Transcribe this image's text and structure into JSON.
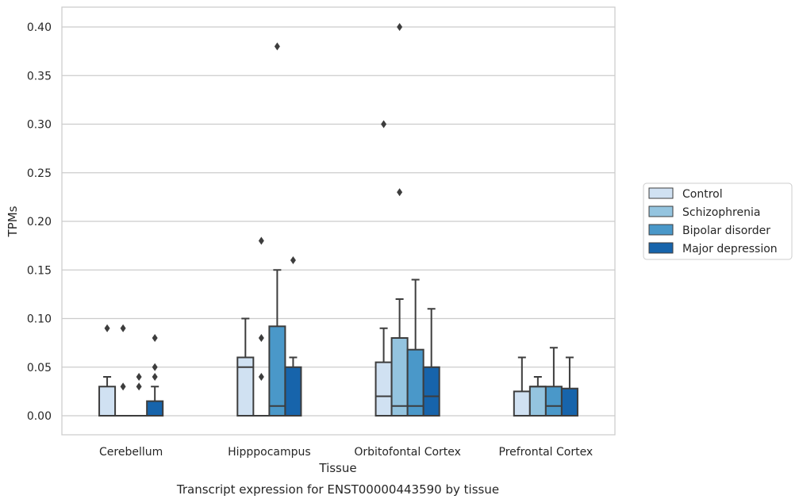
{
  "chart_data": {
    "type": "box",
    "caption": "Transcript expression for ENST00000443590 by tissue",
    "xlabel": "Tissue",
    "ylabel": "TPMs",
    "ylim": [
      -0.02,
      0.42
    ],
    "yticks": [
      "0.00",
      "0.05",
      "0.10",
      "0.15",
      "0.20",
      "0.25",
      "0.30",
      "0.35",
      "0.40"
    ],
    "grid": "horizontal",
    "legend_position": "right",
    "categories": [
      "Cerebellum",
      "Hipppocampus",
      "Orbitofontal Cortex",
      "Prefrontal Cortex"
    ],
    "series": [
      {
        "name": "Control",
        "color": "#d0e1f2",
        "boxes": [
          {
            "whislo": 0.0,
            "q1": 0.0,
            "med": 0.0,
            "q3": 0.03,
            "whishi": 0.04,
            "fliers": [
              0.09
            ]
          },
          {
            "whislo": 0.0,
            "q1": 0.0,
            "med": 0.05,
            "q3": 0.06,
            "whishi": 0.1,
            "fliers": []
          },
          {
            "whislo": 0.0,
            "q1": 0.0,
            "med": 0.02,
            "q3": 0.055,
            "whishi": 0.09,
            "fliers": [
              0.3
            ]
          },
          {
            "whislo": 0.0,
            "q1": 0.0,
            "med": 0.0,
            "q3": 0.025,
            "whishi": 0.06,
            "fliers": []
          }
        ]
      },
      {
        "name": "Schizophrenia",
        "color": "#94c4df",
        "boxes": [
          {
            "whislo": 0.0,
            "q1": 0.0,
            "med": 0.0,
            "q3": 0.0,
            "whishi": 0.0,
            "fliers": [
              0.09,
              0.03
            ]
          },
          {
            "whislo": 0.0,
            "q1": 0.0,
            "med": 0.0,
            "q3": 0.0,
            "whishi": 0.0,
            "fliers": [
              0.18,
              0.08,
              0.04
            ]
          },
          {
            "whislo": 0.0,
            "q1": 0.0,
            "med": 0.01,
            "q3": 0.08,
            "whishi": 0.12,
            "fliers": [
              0.4,
              0.23
            ]
          },
          {
            "whislo": 0.0,
            "q1": 0.0,
            "med": 0.03,
            "q3": 0.03,
            "whishi": 0.04,
            "fliers": []
          }
        ]
      },
      {
        "name": "Bipolar disorder",
        "color": "#4a98c9",
        "boxes": [
          {
            "whislo": 0.0,
            "q1": 0.0,
            "med": 0.0,
            "q3": 0.0,
            "whishi": 0.0,
            "fliers": [
              0.04,
              0.03
            ]
          },
          {
            "whislo": 0.0,
            "q1": 0.0,
            "med": 0.01,
            "q3": 0.092,
            "whishi": 0.15,
            "fliers": [
              0.38
            ]
          },
          {
            "whislo": 0.0,
            "q1": 0.0,
            "med": 0.01,
            "q3": 0.068,
            "whishi": 0.14,
            "fliers": []
          },
          {
            "whislo": 0.0,
            "q1": 0.0,
            "med": 0.01,
            "q3": 0.03,
            "whishi": 0.07,
            "fliers": []
          }
        ]
      },
      {
        "name": "Major depression",
        "color": "#1764ab",
        "boxes": [
          {
            "whislo": 0.0,
            "q1": 0.0,
            "med": 0.0,
            "q3": 0.015,
            "whishi": 0.03,
            "fliers": [
              0.08,
              0.05,
              0.04
            ]
          },
          {
            "whislo": 0.0,
            "q1": 0.0,
            "med": 0.0,
            "q3": 0.05,
            "whishi": 0.06,
            "fliers": [
              0.16
            ]
          },
          {
            "whislo": 0.0,
            "q1": 0.0,
            "med": 0.02,
            "q3": 0.05,
            "whishi": 0.11,
            "fliers": []
          },
          {
            "whislo": 0.0,
            "q1": 0.0,
            "med": 0.0,
            "q3": 0.028,
            "whishi": 0.06,
            "fliers": []
          }
        ]
      }
    ]
  }
}
